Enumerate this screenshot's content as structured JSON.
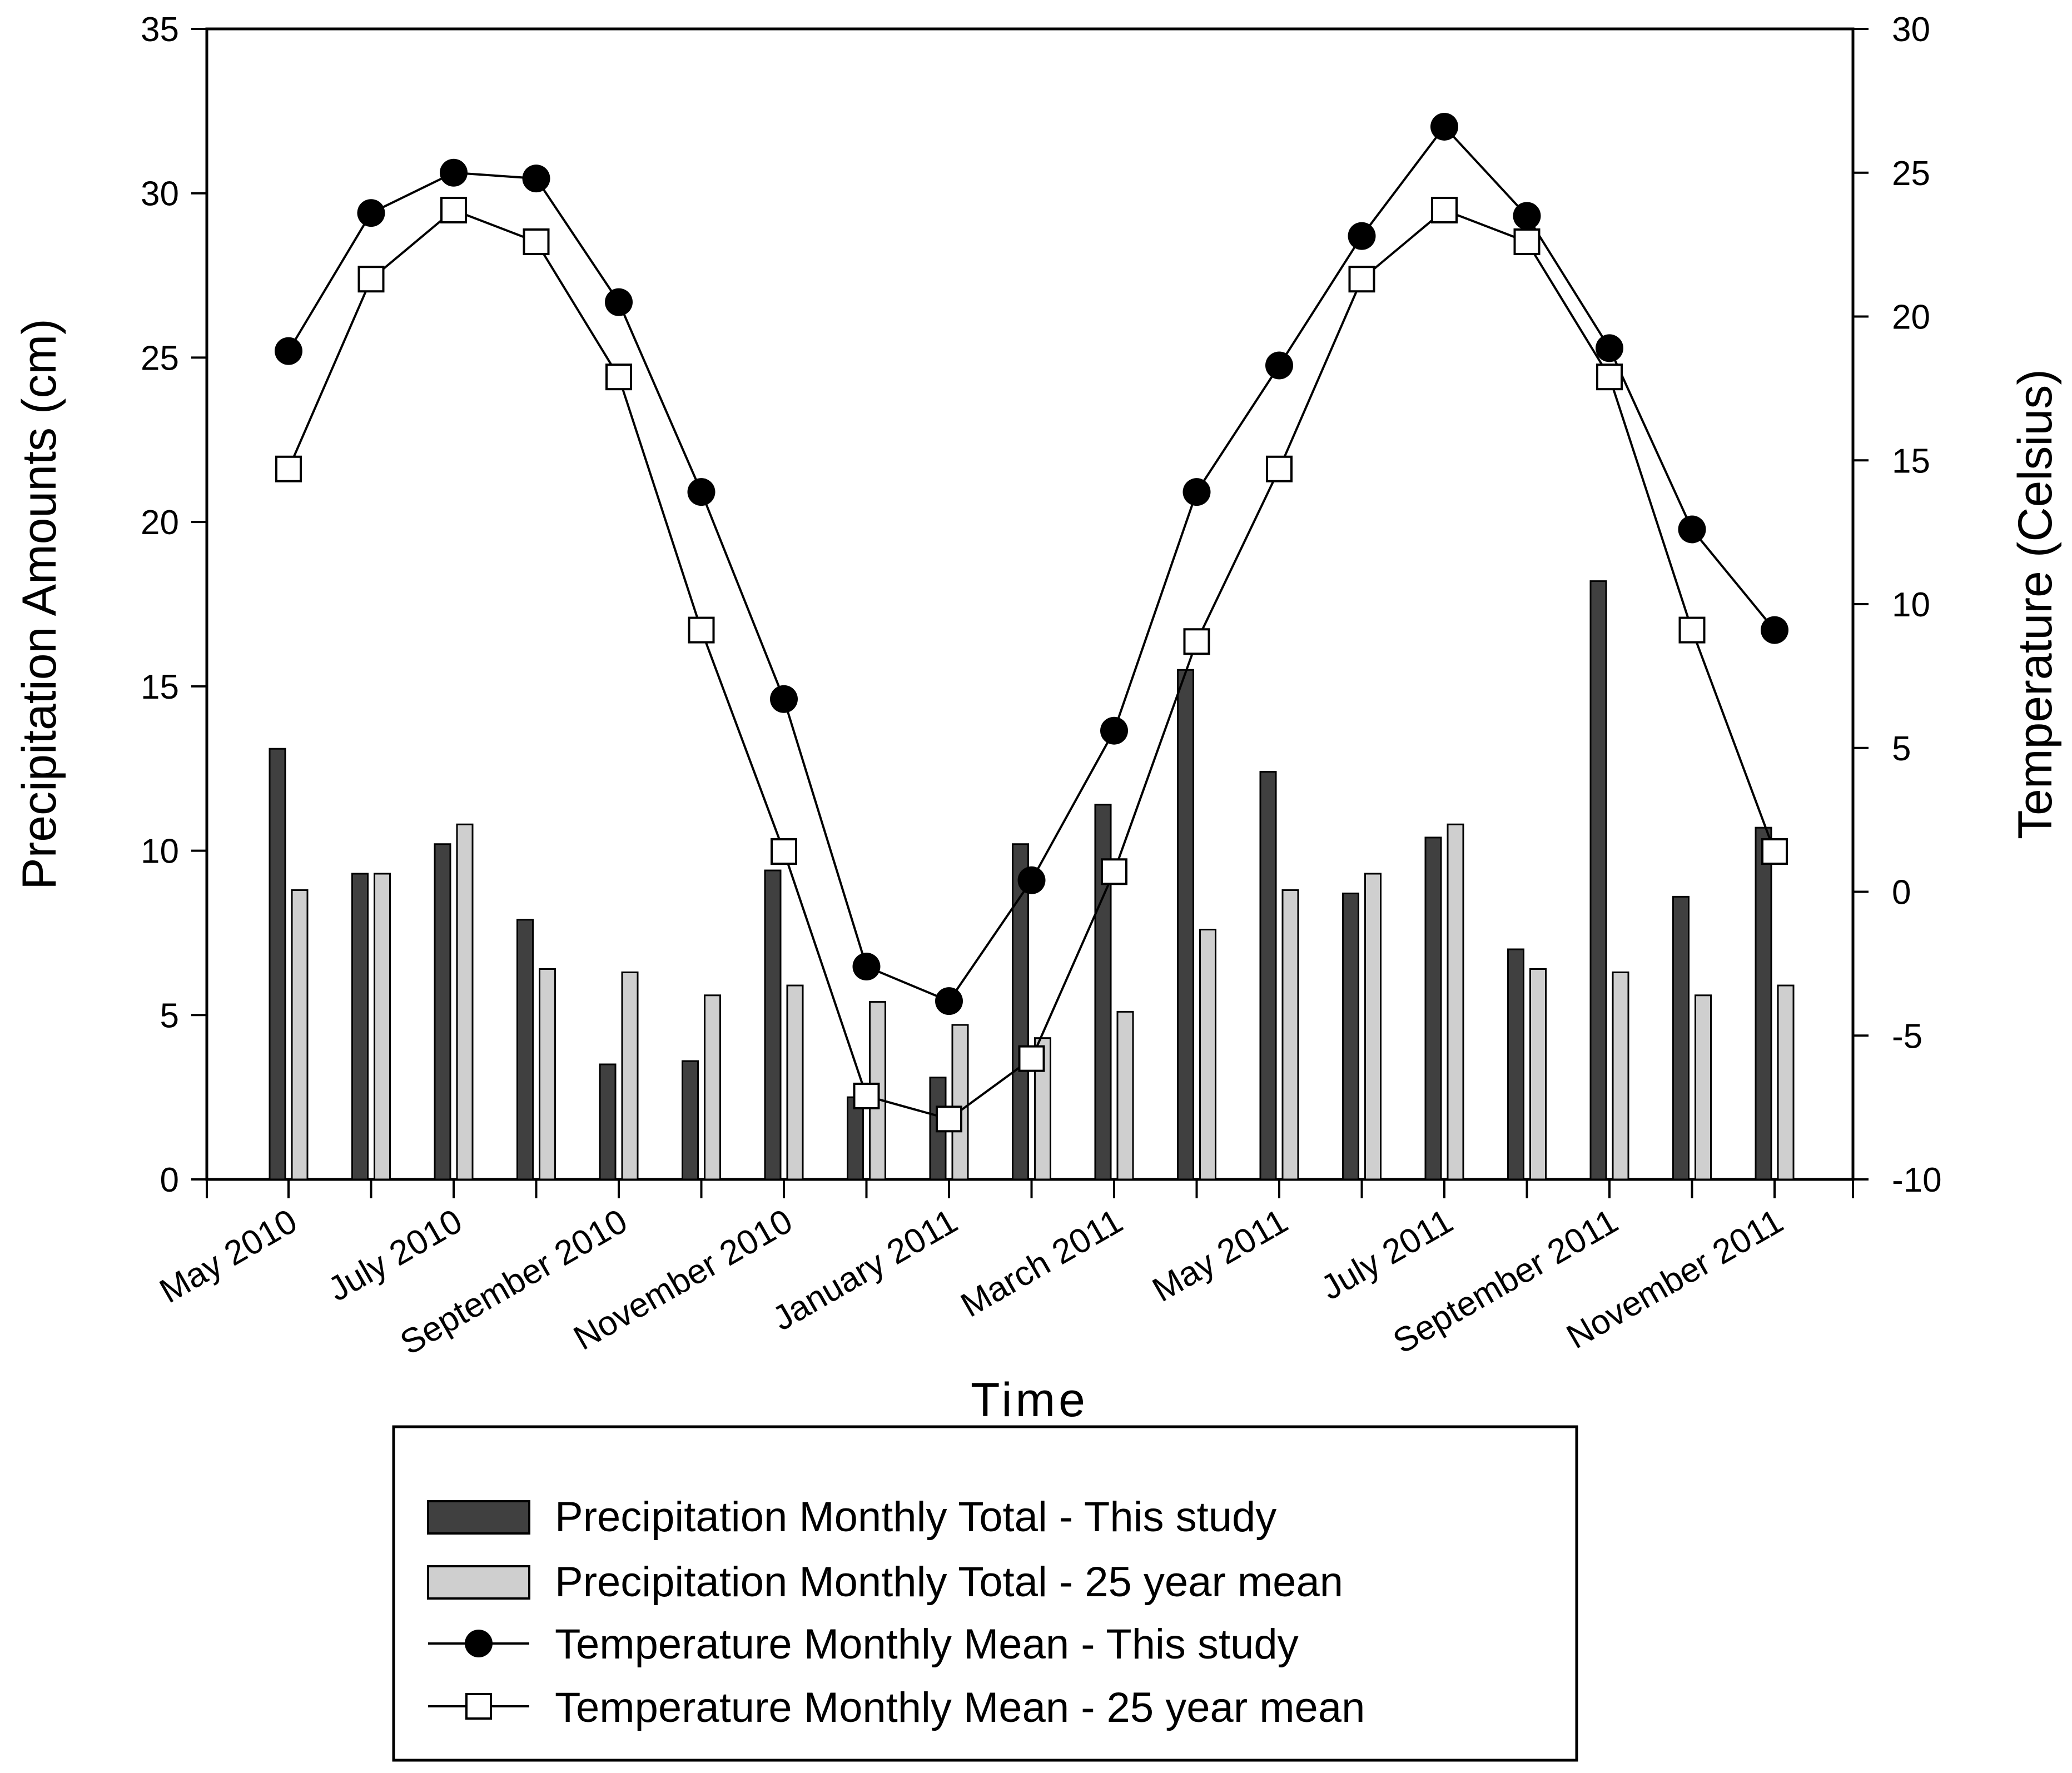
{
  "chart_data": {
    "type": "bar+line",
    "categories": [
      "May 2010",
      "Jun 2010",
      "Jul 2010",
      "Aug 2010",
      "Sep 2010",
      "Oct 2010",
      "Nov 2010",
      "Dec 2010",
      "Jan 2011",
      "Feb 2011",
      "Mar 2011",
      "Apr 2011",
      "May 2011",
      "Jun 2011",
      "Jul 2011",
      "Aug 2011",
      "Sep 2011",
      "Oct 2011",
      "Nov 2011"
    ],
    "x_tick_labels": [
      "May 2010",
      "July 2010",
      "September 2010",
      "November 2010",
      "January 2011",
      "March 2011",
      "May 2011",
      "July 2011",
      "September 2011",
      "November 2011"
    ],
    "xlabel": "Time",
    "y_left": {
      "label": "Precipitation Amounts (cm)",
      "lim": [
        0,
        35
      ],
      "ticks": [
        "0",
        "5",
        "10",
        "15",
        "20",
        "25",
        "30",
        "35"
      ]
    },
    "y_right": {
      "label": "Temperature (Celsius)",
      "lim": [
        -10,
        30
      ],
      "ticks": [
        "-10",
        "-5",
        "0",
        "5",
        "10",
        "15",
        "20",
        "25",
        "30"
      ]
    },
    "series": [
      {
        "name": "Precipitation Monthly Total - This study",
        "kind": "bar",
        "axis": "left",
        "color": "#404040",
        "values": [
          13.1,
          9.3,
          10.2,
          7.9,
          3.5,
          3.6,
          9.4,
          2.5,
          3.1,
          10.2,
          11.4,
          15.5,
          12.4,
          8.7,
          10.4,
          7.0,
          18.2,
          8.6,
          10.7
        ]
      },
      {
        "name": "Precipitation Monthly Total - 25 year mean",
        "kind": "bar",
        "axis": "left",
        "color": "#cfcfcf",
        "values": [
          8.8,
          9.3,
          10.8,
          6.4,
          6.3,
          5.6,
          5.9,
          5.4,
          4.7,
          4.3,
          5.1,
          7.6,
          8.8,
          9.3,
          10.8,
          6.4,
          6.3,
          5.6,
          5.9
        ]
      },
      {
        "name": "Temperature Monthly Mean - This study",
        "kind": "line",
        "marker": "circle",
        "axis": "right",
        "color": "#000000",
        "values": [
          18.8,
          23.6,
          25.0,
          24.8,
          20.5,
          13.9,
          6.7,
          -2.6,
          -3.8,
          0.4,
          5.6,
          13.9,
          18.3,
          22.8,
          26.6,
          23.5,
          18.9,
          12.6,
          9.1
        ]
      },
      {
        "name": "Temperature Monthly Mean - 25 year mean",
        "kind": "line",
        "marker": "square",
        "axis": "right",
        "color": "#000000",
        "values": [
          14.7,
          21.3,
          23.7,
          22.6,
          17.9,
          9.1,
          1.4,
          -7.1,
          -7.9,
          -5.8,
          0.7,
          8.7,
          14.7,
          21.3,
          23.7,
          22.6,
          17.9,
          9.1,
          1.4
        ]
      }
    ],
    "legend": {
      "placement": "bottom-center",
      "entries": [
        "Precipitation Monthly Total - This study",
        "Precipitation Monthly Total - 25 year mean",
        "Temperature Monthly Mean - This study",
        "Temperature Monthly Mean - 25 year mean"
      ]
    }
  }
}
